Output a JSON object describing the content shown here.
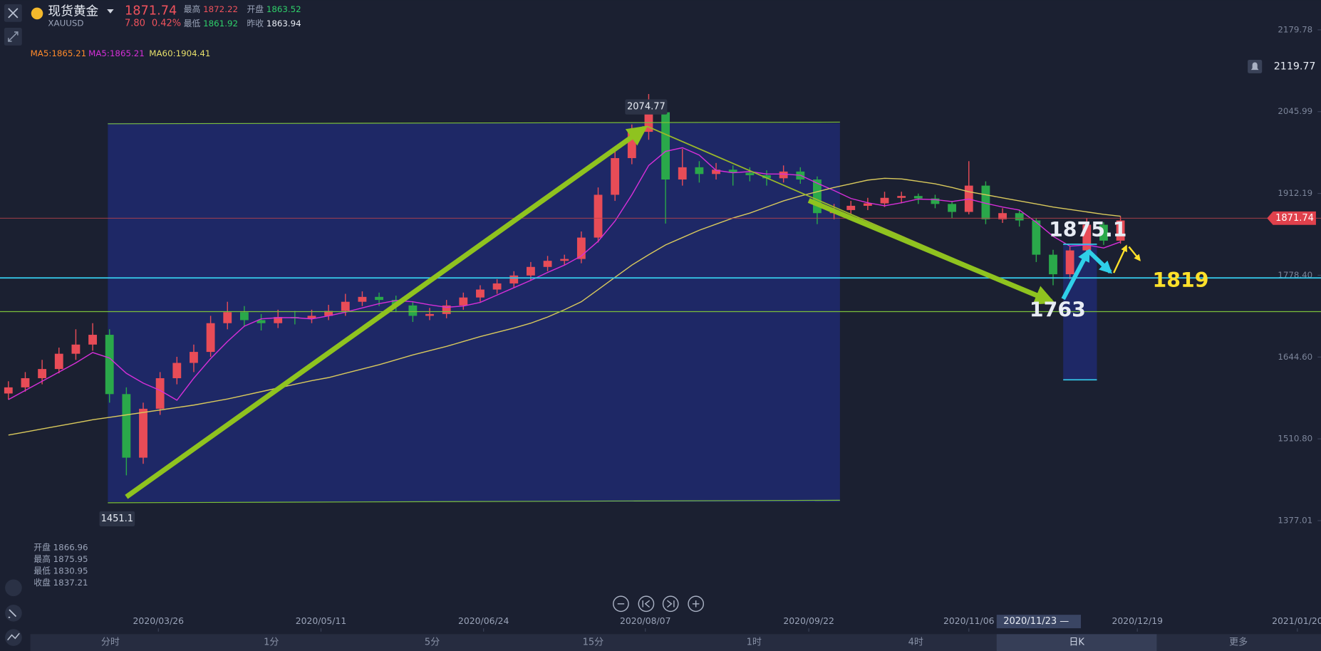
{
  "header": {
    "name": "现货黄金",
    "symbol": "XAUUSD",
    "change": "7.80",
    "change_pct": "0.42%",
    "stats": [
      {
        "label": "最高",
        "value": "1872.22"
      },
      {
        "label": "开盘",
        "value": "1863.52"
      },
      {
        "label": "最低",
        "value": "1861.92"
      },
      {
        "label": "昨收",
        "value": "1863.94"
      }
    ]
  },
  "legend": [
    "MA5:1865.21",
    "MA5:1865.21",
    "MA60:1904.41"
  ],
  "ohlc_box": [
    {
      "label": "开盘",
      "value": "1866.96"
    },
    {
      "label": "最高",
      "value": "1875.95"
    },
    {
      "label": "最低",
      "value": "1830.95"
    },
    {
      "label": "收盘",
      "value": "1837.21"
    }
  ],
  "annotations": {
    "high": "2074.77",
    "low": "1451.1",
    "peak": "1875.1",
    "trough": "1763",
    "target": "1819"
  },
  "crosshair_date": "2020/11/23 —",
  "tabs": [
    "分时",
    "1分",
    "5分",
    "15分",
    "1时",
    "4时",
    "日K",
    "更多"
  ],
  "chart_data": {
    "type": "candlestick",
    "last_price": 1871.74,
    "alert_price": 2119.77,
    "ylim": [
      1291.9,
      2228.6
    ],
    "yticks": [
      2179.78,
      2045.99,
      1912.19,
      {
        "value": 1778.4,
        "label": "1778.40"
      },
      {
        "value": 1644.6,
        "label": "1644.60"
      },
      {
        "value": 1510.8,
        "label": "1510.80"
      },
      1377.01
    ],
    "xlim": [
      -0.5,
      77.9
    ],
    "xticks": [
      {
        "value": 8.9,
        "label": "2020/03/26"
      },
      {
        "value": 18.55,
        "label": "2020/05/11"
      },
      {
        "value": 28.2,
        "label": "2020/06/24"
      },
      {
        "value": 37.8,
        "label": "2020/08/07"
      },
      {
        "value": 47.5,
        "label": "2020/09/22"
      },
      {
        "value": 57,
        "label": "2020/11/06"
      },
      {
        "value": 67,
        "label": "2020/12/19"
      },
      {
        "value": 76.5,
        "label": "2021/01/20"
      }
    ],
    "up_color": "#e84c57",
    "down_color": "#2aa84a",
    "candles": [
      [
        1585,
        1605,
        1575,
        1595
      ],
      [
        1595,
        1620,
        1588,
        1610
      ],
      [
        1610,
        1640,
        1600,
        1625
      ],
      [
        1625,
        1660,
        1618,
        1650
      ],
      [
        1650,
        1690,
        1640,
        1665
      ],
      [
        1665,
        1700,
        1655,
        1681
      ],
      [
        1681,
        1690,
        1570,
        1584
      ],
      [
        1584,
        1595,
        1451.1,
        1480
      ],
      [
        1480,
        1570,
        1470,
        1560
      ],
      [
        1560,
        1620,
        1550,
        1610
      ],
      [
        1610,
        1645,
        1600,
        1635
      ],
      [
        1635,
        1665,
        1620,
        1653
      ],
      [
        1653,
        1712,
        1645,
        1700
      ],
      [
        1700,
        1735,
        1690,
        1718
      ],
      [
        1718,
        1728,
        1695,
        1705
      ],
      [
        1705,
        1715,
        1688,
        1700
      ],
      [
        1700,
        1722,
        1692,
        1710
      ],
      [
        1710,
        1720,
        1698,
        1708
      ],
      [
        1708,
        1722,
        1700,
        1712
      ],
      [
        1712,
        1730,
        1705,
        1720
      ],
      [
        1720,
        1748,
        1712,
        1735
      ],
      [
        1735,
        1752,
        1728,
        1743
      ],
      [
        1743,
        1750,
        1728,
        1738
      ],
      [
        1738,
        1745,
        1718,
        1729
      ],
      [
        1729,
        1736,
        1702,
        1712
      ],
      [
        1712,
        1725,
        1705,
        1715
      ],
      [
        1715,
        1738,
        1708,
        1729
      ],
      [
        1729,
        1750,
        1722,
        1742
      ],
      [
        1742,
        1762,
        1735,
        1755
      ],
      [
        1755,
        1772,
        1748,
        1765
      ],
      [
        1765,
        1785,
        1758,
        1778
      ],
      [
        1778,
        1800,
        1770,
        1792
      ],
      [
        1792,
        1810,
        1785,
        1802
      ],
      [
        1802,
        1812,
        1795,
        1805
      ],
      [
        1805,
        1850,
        1798,
        1840
      ],
      [
        1840,
        1922,
        1832,
        1910
      ],
      [
        1910,
        1985,
        1900,
        1970
      ],
      [
        1970,
        2025,
        1960,
        2013
      ],
      [
        2013,
        2074.77,
        2000,
        2045
      ],
      [
        2045,
        2050,
        1863,
        1935
      ],
      [
        1935,
        1985,
        1925,
        1955
      ],
      [
        1955,
        1965,
        1930,
        1944
      ],
      [
        1944,
        1962,
        1935,
        1951
      ],
      [
        1951,
        1958,
        1925,
        1946
      ],
      [
        1946,
        1955,
        1932,
        1942
      ],
      [
        1942,
        1950,
        1925,
        1937
      ],
      [
        1937,
        1958,
        1930,
        1948
      ],
      [
        1948,
        1955,
        1928,
        1935
      ],
      [
        1935,
        1940,
        1862,
        1880
      ],
      [
        1880,
        1895,
        1870,
        1885
      ],
      [
        1885,
        1900,
        1878,
        1892
      ],
      [
        1892,
        1905,
        1885,
        1896
      ],
      [
        1896,
        1915,
        1890,
        1905
      ],
      [
        1905,
        1915,
        1896,
        1908
      ],
      [
        1908,
        1912,
        1895,
        1904
      ],
      [
        1904,
        1910,
        1888,
        1895
      ],
      [
        1895,
        1900,
        1872,
        1882
      ],
      [
        1882,
        1965,
        1878,
        1925
      ],
      [
        1925,
        1932,
        1862,
        1870
      ],
      [
        1870,
        1888,
        1864,
        1880
      ],
      [
        1880,
        1885,
        1858,
        1868
      ],
      [
        1868,
        1872,
        1800,
        1812
      ],
      [
        1812,
        1820,
        1762,
        1780
      ],
      [
        1780,
        1825,
        1772,
        1819
      ],
      [
        1819,
        1872,
        1812,
        1861
      ],
      [
        1861,
        1865,
        1828,
        1835
      ],
      [
        1835,
        1875,
        1830,
        1868
      ]
    ],
    "series": [
      {
        "name": "MA5",
        "color": "#d62fd8",
        "values": [
          1575,
          1590,
          1605,
          1620,
          1635,
          1652,
          1643,
          1618,
          1602,
          1590,
          1574,
          1610,
          1642,
          1670,
          1695,
          1707,
          1709,
          1709,
          1707,
          1712,
          1718,
          1725,
          1732,
          1737,
          1735,
          1730,
          1726,
          1728,
          1734,
          1746,
          1758,
          1770,
          1783,
          1795,
          1810,
          1834,
          1867,
          1910,
          1958,
          1981,
          1987,
          1975,
          1950,
          1946,
          1948,
          1944,
          1944,
          1942,
          1929,
          1917,
          1904,
          1897,
          1892,
          1897,
          1903,
          1902,
          1899,
          1903,
          1896,
          1890,
          1885,
          1865,
          1842,
          1826,
          1828,
          1823,
          1833
        ]
      },
      {
        "name": "MA60",
        "color": "#d9c95c",
        "values": [
          1517,
          1522,
          1527,
          1532,
          1537,
          1542,
          1546,
          1550,
          1554,
          1558,
          1562,
          1566,
          1571,
          1576,
          1582,
          1588,
          1594,
          1600,
          1606,
          1611,
          1618,
          1625,
          1632,
          1640,
          1648,
          1655,
          1662,
          1670,
          1678,
          1685,
          1692,
          1700,
          1710,
          1722,
          1735,
          1755,
          1775,
          1795,
          1812,
          1828,
          1840,
          1852,
          1862,
          1872,
          1880,
          1890,
          1900,
          1908,
          1915,
          1922,
          1928,
          1934,
          1937,
          1936,
          1932,
          1928,
          1922,
          1915,
          1910,
          1905,
          1900,
          1895,
          1890,
          1886,
          1882,
          1878,
          1875
        ]
      }
    ]
  }
}
